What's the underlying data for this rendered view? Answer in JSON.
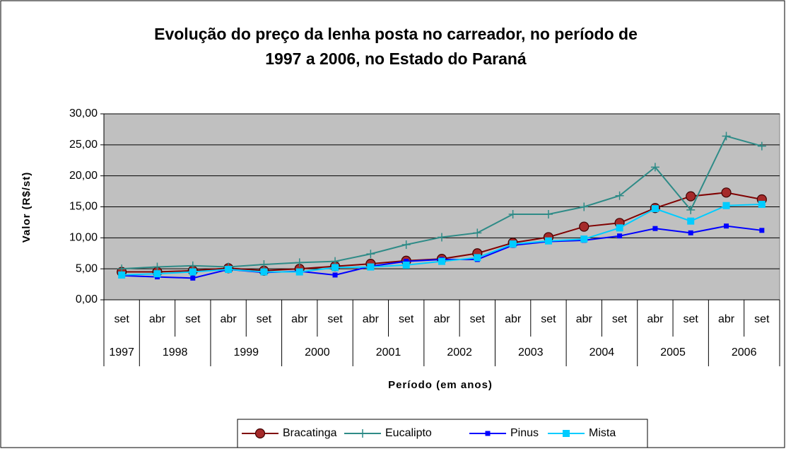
{
  "chart_data": {
    "type": "line",
    "title": [
      "Evolução do preço da lenha posta no carreador, no período de",
      "1997 a 2006, no Estado do Paraná"
    ],
    "y_label": "Valor (R$/st)",
    "x_label": "Período (em anos)",
    "categories": [
      "set",
      "abr",
      "set",
      "abr",
      "set",
      "abr",
      "set",
      "abr",
      "set",
      "abr",
      "set",
      "abr",
      "set",
      "abr",
      "set",
      "abr",
      "set",
      "abr",
      "set"
    ],
    "category_groups": [
      {
        "label": "1997",
        "span": 1
      },
      {
        "label": "1998",
        "span": 2
      },
      {
        "label": "1999",
        "span": 2
      },
      {
        "label": "2000",
        "span": 2
      },
      {
        "label": "2001",
        "span": 2
      },
      {
        "label": "2002",
        "span": 2
      },
      {
        "label": "2003",
        "span": 2
      },
      {
        "label": "2004",
        "span": 2
      },
      {
        "label": "2005",
        "span": 2
      },
      {
        "label": "2006",
        "span": 2
      }
    ],
    "ylim": [
      0,
      30
    ],
    "yticks": [
      {
        "value": 0,
        "label": "0,00"
      },
      {
        "value": 5,
        "label": "5,00"
      },
      {
        "value": 10,
        "label": "10,00"
      },
      {
        "value": 15,
        "label": "15,00"
      },
      {
        "value": 20,
        "label": "20,00"
      },
      {
        "value": 25,
        "label": "25,00"
      },
      {
        "value": 30,
        "label": "30,00"
      }
    ],
    "grid": true,
    "legend": "bottom",
    "series": [
      {
        "name": "Bracatinga",
        "color": "#800000",
        "marker": "circle",
        "values": [
          4.5,
          4.5,
          4.7,
          5.1,
          4.7,
          5.0,
          5.4,
          5.8,
          6.3,
          6.6,
          7.5,
          9.2,
          10.1,
          11.8,
          12.4,
          14.8,
          16.7,
          17.3,
          16.2
        ]
      },
      {
        "name": "Eucalipto",
        "color": "#2E8B87",
        "marker": "plus",
        "values": [
          5.0,
          5.3,
          5.5,
          5.3,
          5.7,
          6.0,
          6.2,
          7.4,
          8.9,
          10.1,
          10.8,
          13.8,
          13.8,
          15.0,
          16.8,
          21.4,
          14.5,
          26.4,
          24.8
        ]
      },
      {
        "name": "Pinus",
        "color": "#0000FF",
        "marker": "square",
        "values": [
          3.9,
          3.7,
          3.5,
          4.9,
          4.4,
          4.6,
          4.0,
          5.4,
          6.2,
          6.5,
          6.5,
          8.8,
          9.4,
          9.6,
          10.3,
          11.5,
          10.8,
          11.9,
          11.2
        ]
      },
      {
        "name": "Mista",
        "color": "#00CCFF",
        "marker": "bigsquare",
        "values": [
          4.0,
          4.2,
          4.5,
          4.9,
          4.5,
          4.5,
          5.2,
          5.3,
          5.6,
          6.2,
          6.8,
          9.0,
          9.5,
          9.8,
          11.6,
          14.7,
          12.7,
          15.2,
          15.4
        ]
      }
    ]
  }
}
